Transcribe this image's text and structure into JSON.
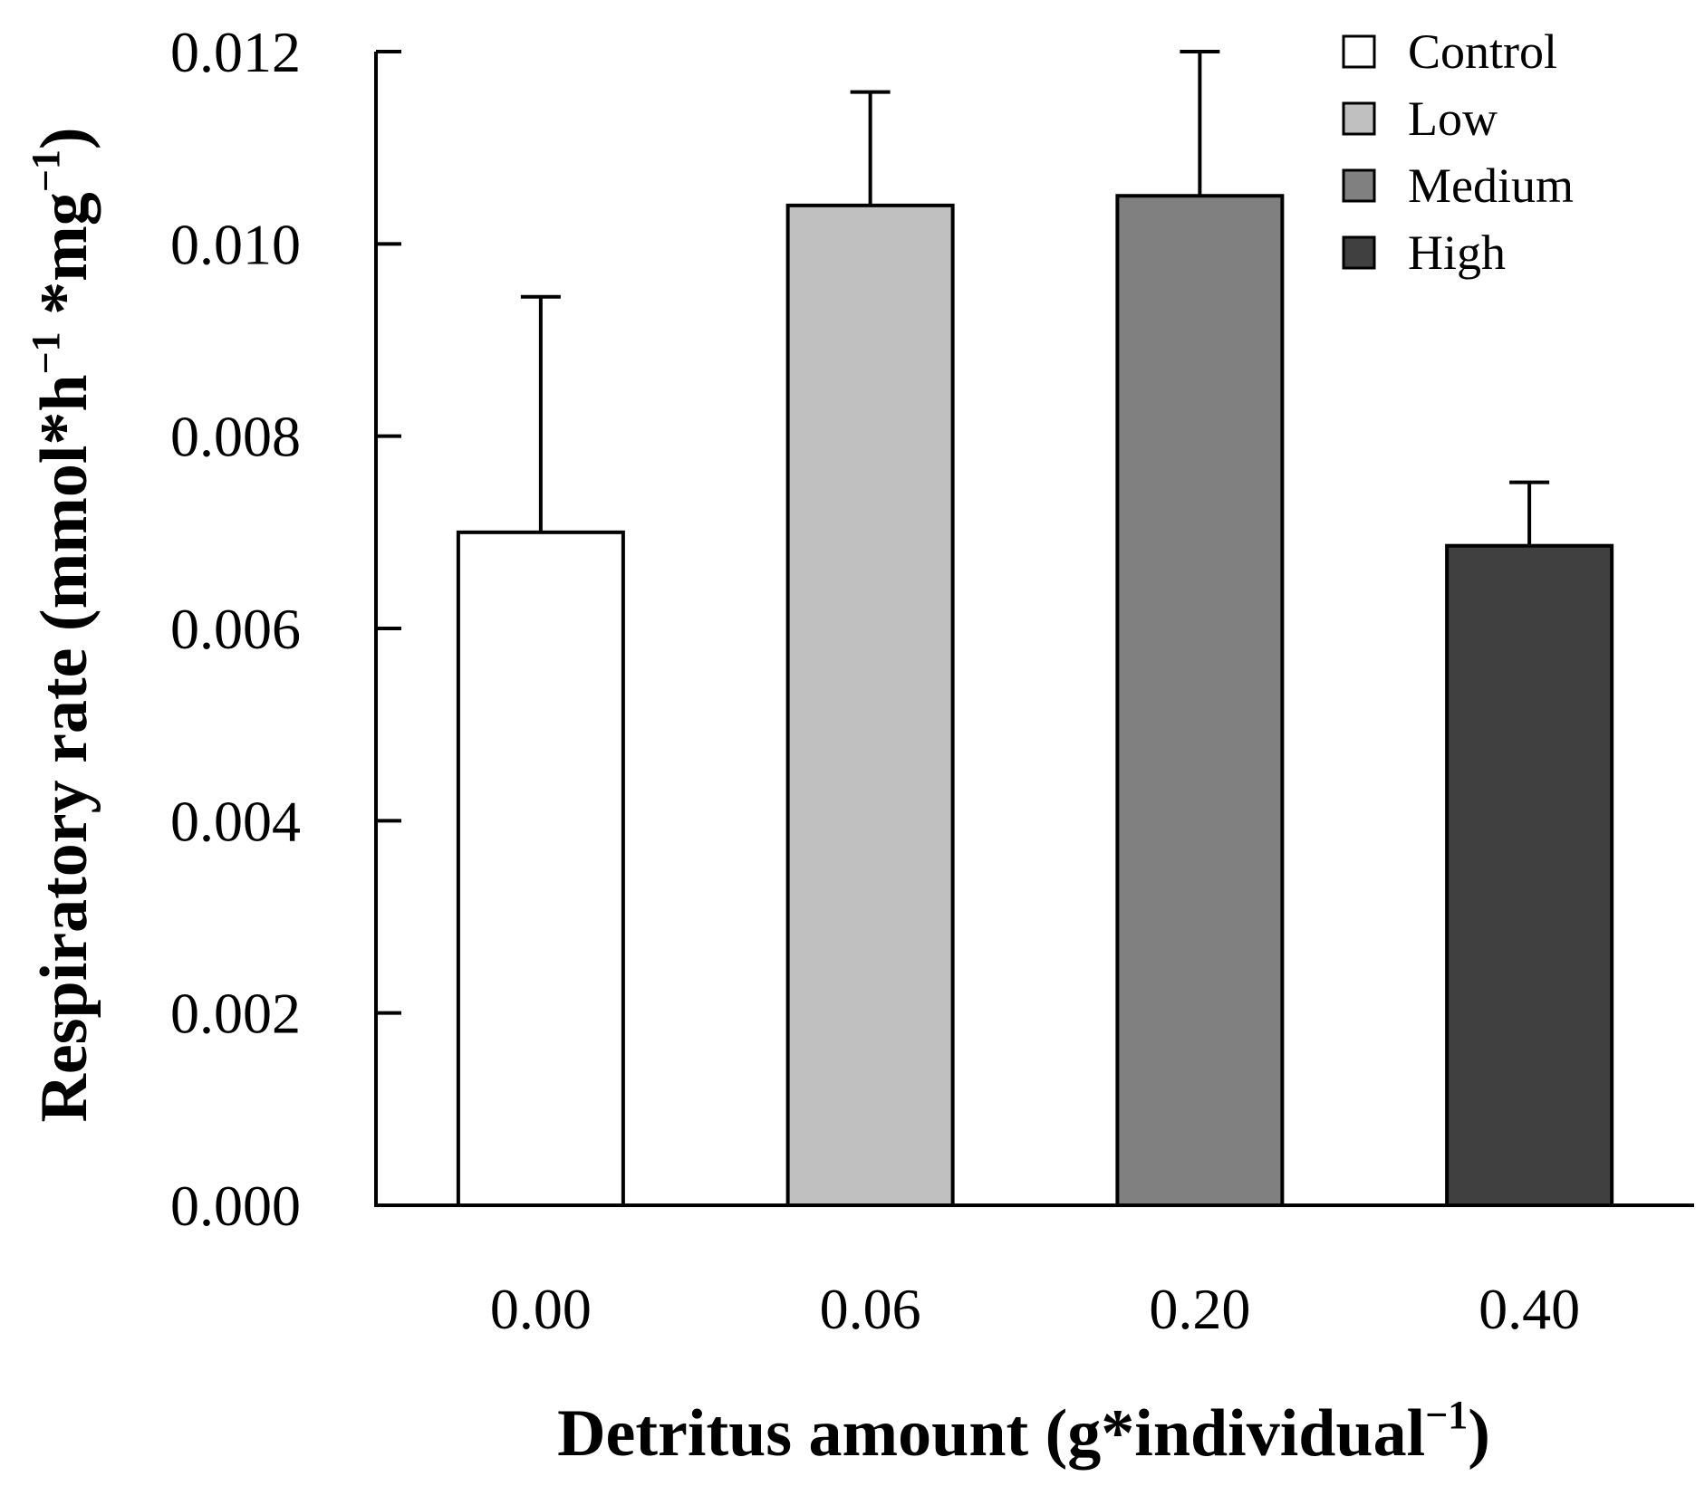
{
  "chart_data": {
    "type": "bar",
    "categories": [
      "0.00",
      "0.06",
      "0.20",
      "0.40"
    ],
    "series": [
      {
        "name": "Control",
        "values": [
          0.007,
          null,
          null,
          null
        ],
        "errors": [
          0.00245,
          null,
          null,
          null
        ],
        "color": "#ffffff"
      },
      {
        "name": "Low",
        "values": [
          null,
          0.0104,
          null,
          null
        ],
        "errors": [
          null,
          0.00118,
          null,
          null
        ],
        "color": "#c0c0c0"
      },
      {
        "name": "Medium",
        "values": [
          null,
          null,
          0.0105,
          null
        ],
        "errors": [
          null,
          null,
          0.0015,
          null
        ],
        "color": "#808080"
      },
      {
        "name": "High",
        "values": [
          null,
          null,
          null,
          0.00686
        ],
        "errors": [
          null,
          null,
          null,
          0.00066
        ],
        "color": "#404040"
      }
    ],
    "ylim": [
      0,
      0.012
    ],
    "yticks": [
      "0.000",
      "0.002",
      "0.004",
      "0.006",
      "0.008",
      "0.010",
      "0.012"
    ],
    "xlabel": {
      "text": "Detritus amount (g*individual",
      "sup": "−1",
      "close": ")"
    },
    "ylabel": {
      "text": "Respiratory rate (mmol*h",
      "sup1": "−1",
      "mid": " *mg",
      "sup2": "−1",
      "close": ")"
    },
    "legend": [
      "Control",
      "Low",
      "Medium",
      "High"
    ],
    "legend_position": "top-right",
    "grid": false
  }
}
